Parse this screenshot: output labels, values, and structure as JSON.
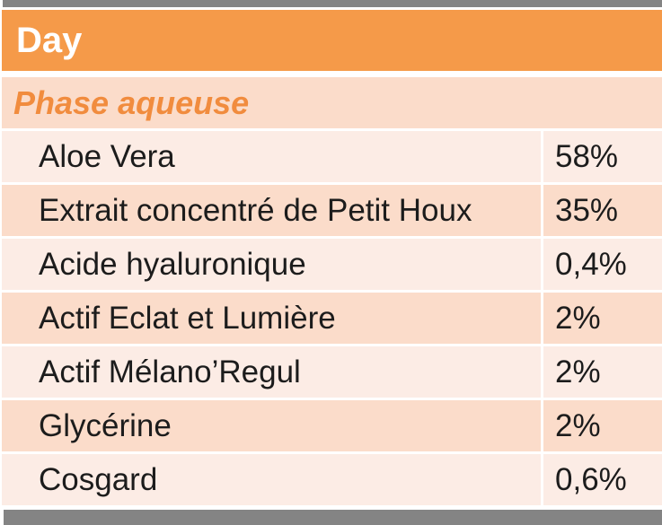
{
  "colors": {
    "header_bg": "#F59A49",
    "header_text": "#FFFFFF",
    "section_bg": "#FBDCCA",
    "section_text": "#F18C3E",
    "band_light": "#FCECE5",
    "band_dark": "#FBDCCA",
    "row_text": "#1C1C1C",
    "gray_bar": "#848484",
    "page_bg": "#FFFFFF"
  },
  "table": {
    "title": "Day",
    "section": "Phase aqueuse",
    "columns": [
      "ingredient",
      "percentage"
    ],
    "rows": [
      {
        "name": "Aloe Vera",
        "value": "58%"
      },
      {
        "name": "Extrait concentré de Petit Houx",
        "value": "35%"
      },
      {
        "name": "Acide hyaluronique",
        "value": "0,4%"
      },
      {
        "name": "Actif Eclat et Lumière",
        "value": "2%"
      },
      {
        "name": "Actif Mélano’Regul",
        "value": "2%"
      },
      {
        "name": "Glycérine",
        "value": "2%"
      },
      {
        "name": "Cosgard",
        "value": "0,6%"
      }
    ]
  }
}
